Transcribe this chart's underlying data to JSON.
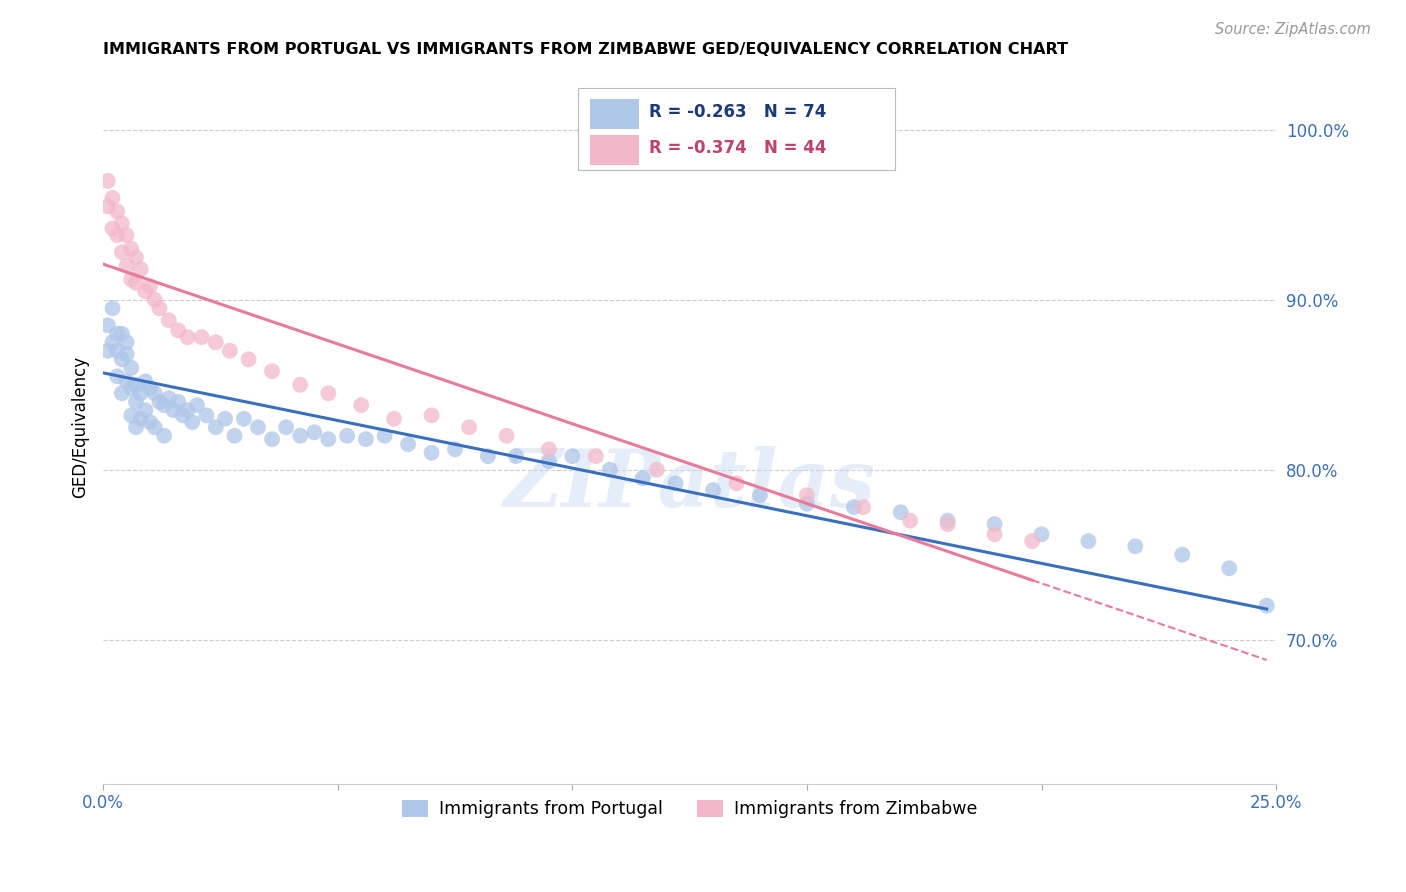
{
  "title": "IMMIGRANTS FROM PORTUGAL VS IMMIGRANTS FROM ZIMBABWE GED/EQUIVALENCY CORRELATION CHART",
  "source": "Source: ZipAtlas.com",
  "ylabel": "GED/Equivalency",
  "xlim": [
    0.0,
    0.25
  ],
  "ylim": [
    0.615,
    1.035
  ],
  "x_ticks": [
    0.0,
    0.05,
    0.1,
    0.15,
    0.2,
    0.25
  ],
  "x_tick_labels": [
    "0.0%",
    "",
    "",
    "",
    "",
    "25.0%"
  ],
  "y_ticks": [
    0.7,
    0.8,
    0.9,
    1.0
  ],
  "y_tick_labels": [
    "70.0%",
    "80.0%",
    "90.0%",
    "100.0%"
  ],
  "color_portugal": "#aec6e8",
  "color_zimbabwe": "#f2b8ca",
  "line_color_portugal": "#3a6fbe",
  "line_color_zimbabwe": "#e87a9a",
  "watermark": "ZIPatlas",
  "portugal_x": [
    0.001,
    0.001,
    0.002,
    0.002,
    0.003,
    0.003,
    0.003,
    0.004,
    0.004,
    0.004,
    0.005,
    0.005,
    0.005,
    0.006,
    0.006,
    0.006,
    0.007,
    0.007,
    0.007,
    0.008,
    0.008,
    0.009,
    0.009,
    0.01,
    0.01,
    0.011,
    0.011,
    0.012,
    0.013,
    0.013,
    0.014,
    0.015,
    0.016,
    0.017,
    0.018,
    0.019,
    0.02,
    0.022,
    0.024,
    0.026,
    0.028,
    0.03,
    0.033,
    0.036,
    0.039,
    0.042,
    0.045,
    0.048,
    0.052,
    0.056,
    0.06,
    0.065,
    0.07,
    0.075,
    0.082,
    0.088,
    0.095,
    0.1,
    0.108,
    0.115,
    0.122,
    0.13,
    0.14,
    0.15,
    0.16,
    0.17,
    0.18,
    0.19,
    0.2,
    0.21,
    0.22,
    0.23,
    0.24,
    0.248
  ],
  "portugal_y": [
    0.885,
    0.87,
    0.895,
    0.875,
    0.88,
    0.87,
    0.855,
    0.88,
    0.865,
    0.845,
    0.875,
    0.868,
    0.852,
    0.86,
    0.848,
    0.832,
    0.85,
    0.84,
    0.825,
    0.845,
    0.83,
    0.852,
    0.835,
    0.848,
    0.828,
    0.845,
    0.825,
    0.84,
    0.838,
    0.82,
    0.842,
    0.835,
    0.84,
    0.832,
    0.835,
    0.828,
    0.838,
    0.832,
    0.825,
    0.83,
    0.82,
    0.83,
    0.825,
    0.818,
    0.825,
    0.82,
    0.822,
    0.818,
    0.82,
    0.818,
    0.82,
    0.815,
    0.81,
    0.812,
    0.808,
    0.808,
    0.805,
    0.808,
    0.8,
    0.795,
    0.792,
    0.788,
    0.785,
    0.78,
    0.778,
    0.775,
    0.77,
    0.768,
    0.762,
    0.758,
    0.755,
    0.75,
    0.742,
    0.72
  ],
  "zimbabwe_x": [
    0.001,
    0.001,
    0.002,
    0.002,
    0.003,
    0.003,
    0.004,
    0.004,
    0.005,
    0.005,
    0.006,
    0.006,
    0.007,
    0.007,
    0.008,
    0.009,
    0.01,
    0.011,
    0.012,
    0.014,
    0.016,
    0.018,
    0.021,
    0.024,
    0.027,
    0.031,
    0.036,
    0.042,
    0.048,
    0.055,
    0.062,
    0.07,
    0.078,
    0.086,
    0.095,
    0.105,
    0.118,
    0.135,
    0.15,
    0.162,
    0.172,
    0.18,
    0.19,
    0.198
  ],
  "zimbabwe_y": [
    0.97,
    0.955,
    0.96,
    0.942,
    0.952,
    0.938,
    0.945,
    0.928,
    0.938,
    0.92,
    0.93,
    0.912,
    0.925,
    0.91,
    0.918,
    0.905,
    0.908,
    0.9,
    0.895,
    0.888,
    0.882,
    0.878,
    0.878,
    0.875,
    0.87,
    0.865,
    0.858,
    0.85,
    0.845,
    0.838,
    0.83,
    0.832,
    0.825,
    0.82,
    0.812,
    0.808,
    0.8,
    0.792,
    0.785,
    0.778,
    0.77,
    0.768,
    0.762,
    0.758
  ],
  "blue_line_x0": 0.0,
  "blue_line_y0": 0.857,
  "blue_line_x1": 0.248,
  "blue_line_y1": 0.718,
  "pink_line_x0": 0.0,
  "pink_line_y0": 0.921,
  "pink_line_x1": 0.198,
  "pink_line_y1": 0.735
}
